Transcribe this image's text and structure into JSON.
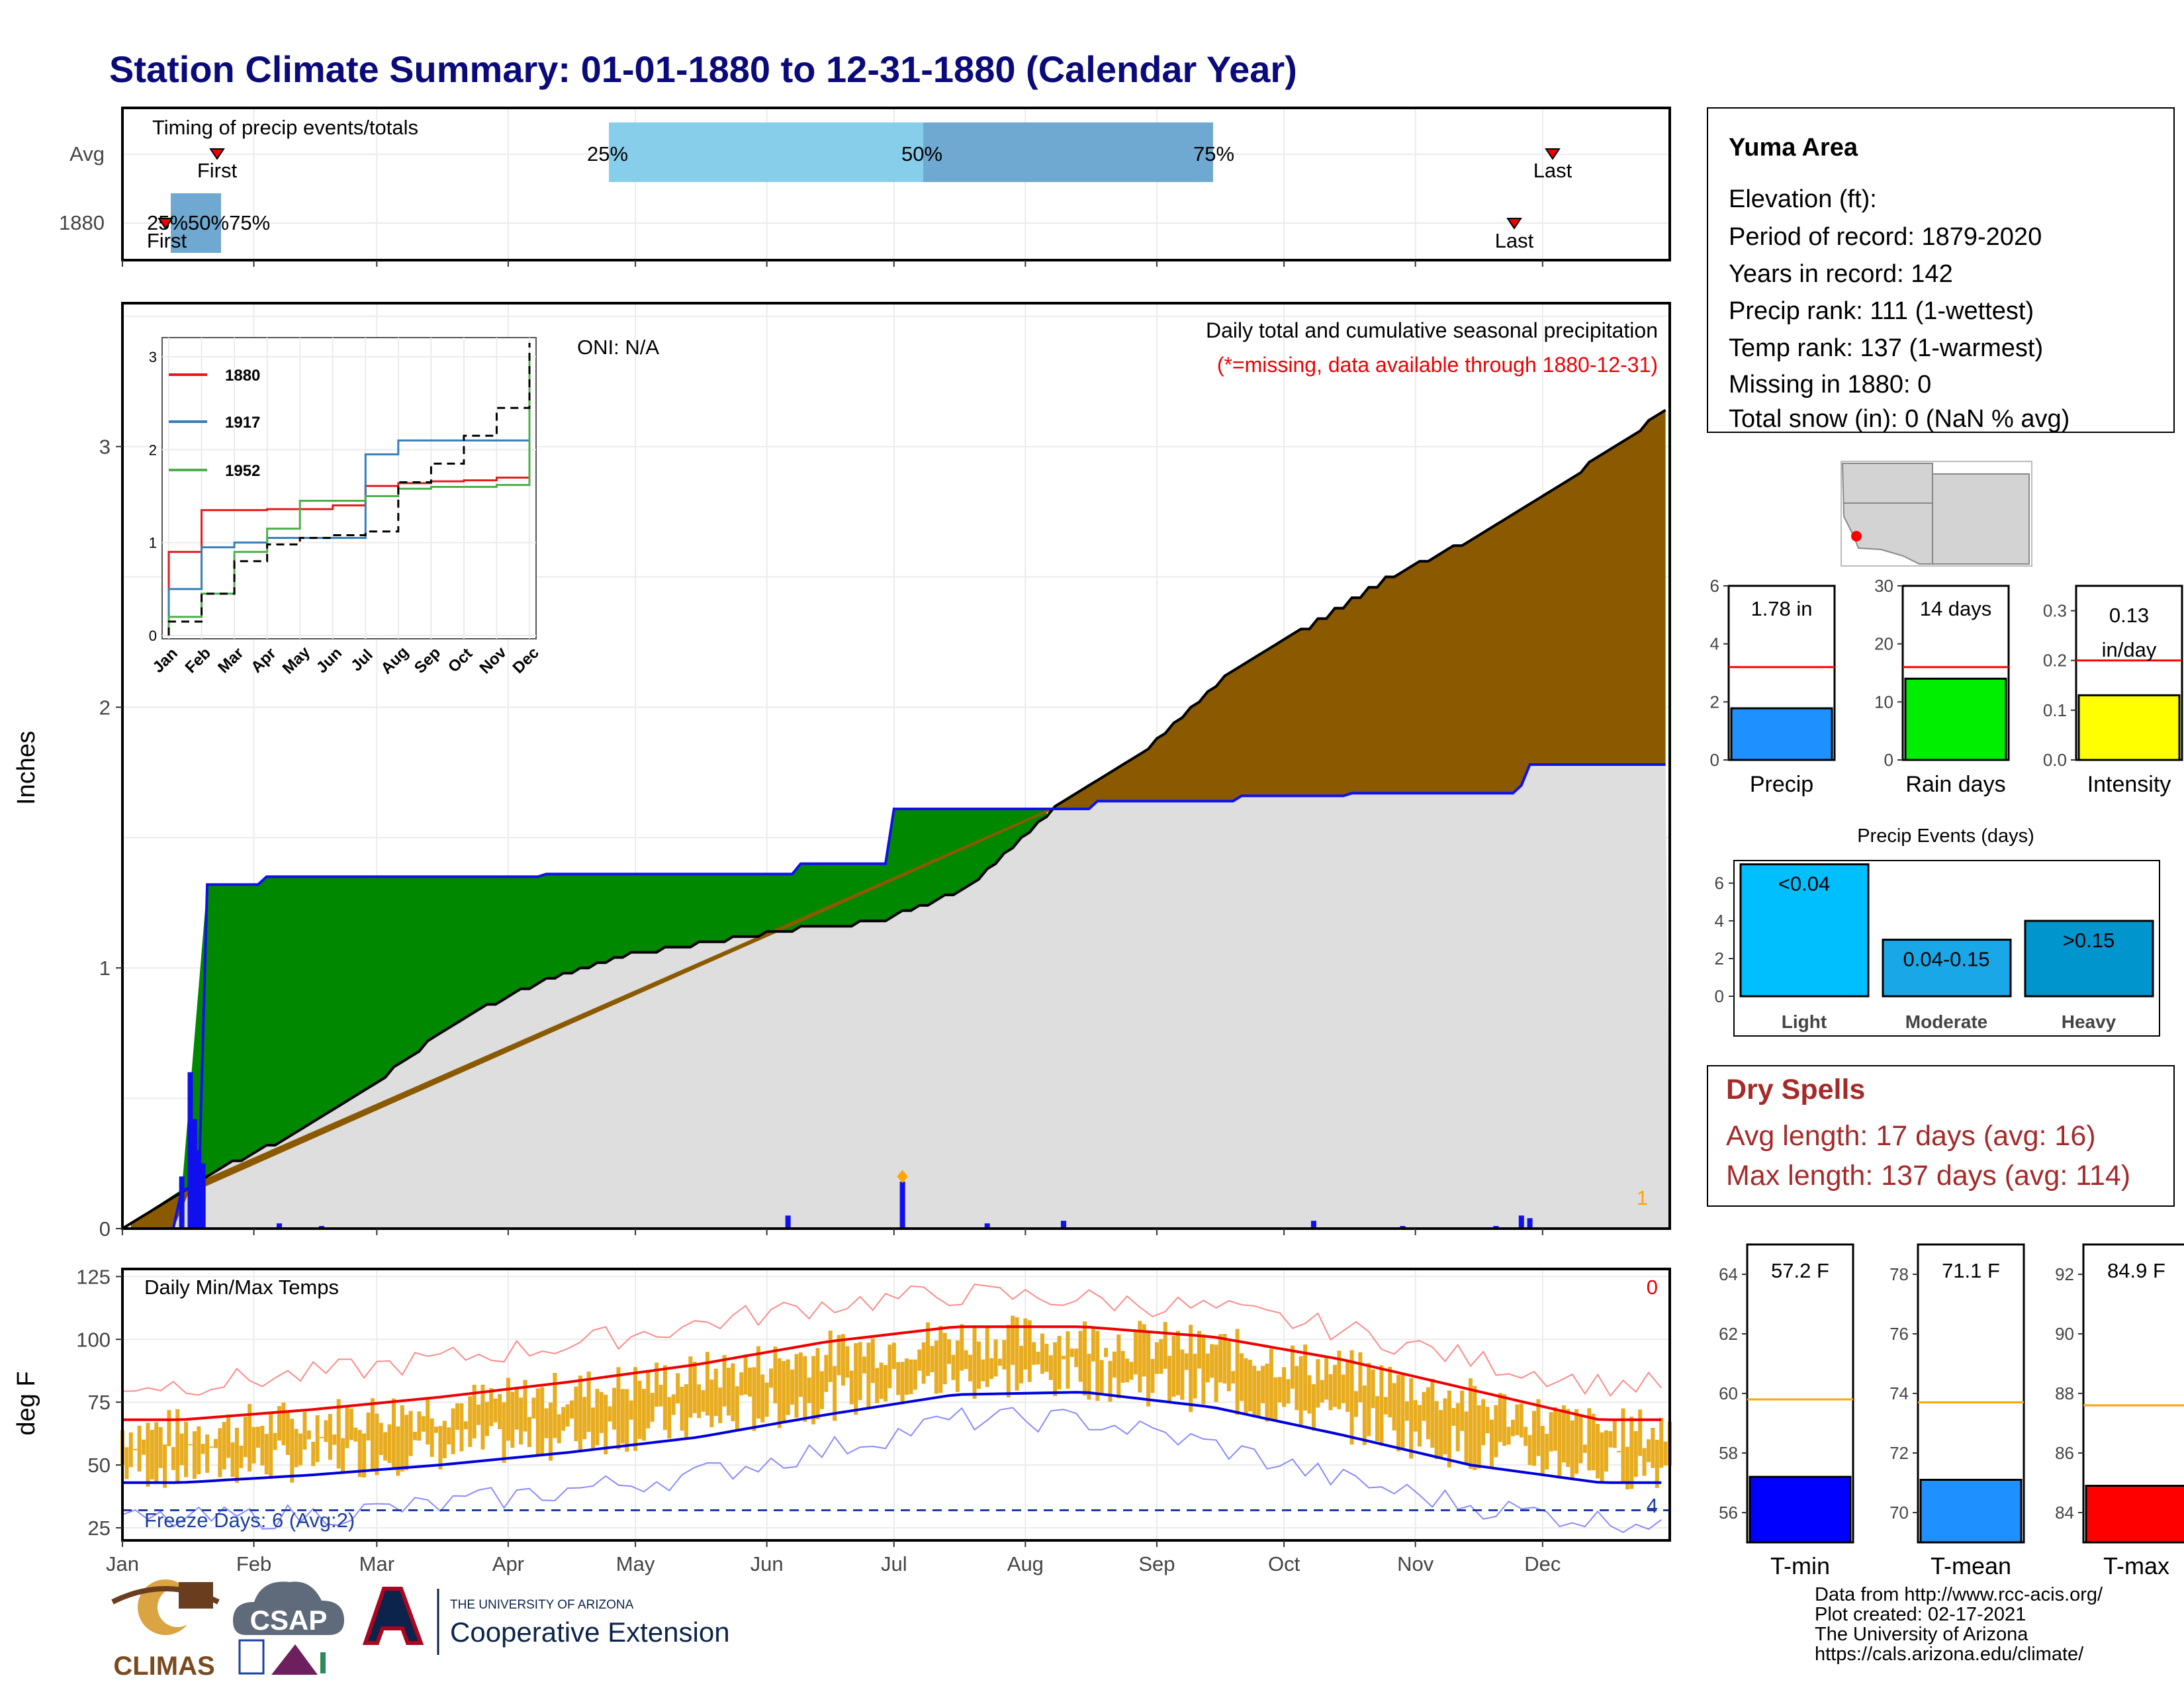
{
  "title": "Station Climate Summary: 01-01-1880 to 12-31-1880 (Calendar Year)",
  "months": [
    "Jan",
    "Feb",
    "Mar",
    "Apr",
    "May",
    "Jun",
    "Jul",
    "Aug",
    "Sep",
    "Oct",
    "Nov",
    "Dec"
  ],
  "timing": {
    "title": "Timing of precip events/totals",
    "rows": [
      "Avg",
      "1880"
    ],
    "avg": {
      "p25_label": "25%",
      "p50_label": "50%",
      "p75_label": "75%",
      "first_label": "First",
      "last_label": "Last",
      "p25": "May 1",
      "p50": "Jul 1",
      "p75": "Sep 1"
    },
    "year": {
      "labels": "25%50%75%",
      "first_label": "First",
      "last_label": "Last"
    }
  },
  "station_box": {
    "name": "Yuma Area",
    "lines": [
      "Elevation (ft):",
      "Period of record: 1879-2020",
      "Years in record: 142",
      "Precip rank: 111 (1-wettest)",
      "Temp rank: 137 (1-warmest)",
      "Missing in 1880: 0",
      "Total snow (in): 0 (NaN % avg)"
    ]
  },
  "precip_chart": {
    "ylabel": "Inches",
    "yticks": [
      "0",
      "1",
      "2",
      "3"
    ],
    "oni": "ONI: N/A",
    "legend_title": "Daily total and cumulative seasonal precipitation",
    "missing_note": "(*=missing, data available through 1880-12-31)",
    "corner_count": "1"
  },
  "inset": {
    "series": [
      "1880",
      "1917",
      "1952"
    ],
    "colors": [
      "#e41a1c",
      "#377eb8",
      "#4daf4a"
    ],
    "yticks": [
      "0",
      "1",
      "2",
      "3"
    ],
    "months": [
      "Jan",
      "Feb",
      "Mar",
      "Apr",
      "May",
      "Jun",
      "Jul",
      "Aug",
      "Sep",
      "Oct",
      "Nov",
      "Dec"
    ]
  },
  "small_bars": {
    "precip": {
      "label": "Precip",
      "value_text": "1.78 in",
      "yticks": [
        "0",
        "2",
        "4",
        "6"
      ],
      "value": 1.78,
      "avg": 3.2,
      "ymax": 6,
      "color": "#1e90ff"
    },
    "rain_days": {
      "label": "Rain days",
      "value_text": "14 days",
      "yticks": [
        "0",
        "10",
        "20",
        "30"
      ],
      "value": 14,
      "avg": 16,
      "ymax": 30,
      "color": "#00ee00"
    },
    "intensity": {
      "label": "Intensity",
      "value_text_1": "0.13",
      "value_text_2": "in/day",
      "yticks": [
        "0.0",
        "0.1",
        "0.2",
        "0.3"
      ],
      "value": 0.13,
      "avg": 0.2,
      "ymax": 0.35,
      "color": "#ffff00"
    }
  },
  "precip_events": {
    "title": "Precip Events (days)",
    "yticks": [
      "0",
      "2",
      "4",
      "6"
    ],
    "categories": [
      "Light",
      "Moderate",
      "Heavy"
    ],
    "bar_labels": [
      "<0.04",
      "0.04-0.15",
      ">0.15"
    ],
    "values": [
      7,
      3,
      4
    ],
    "colors": [
      "#00bfff",
      "#1aa7e8",
      "#0095cc"
    ]
  },
  "dry_spells": {
    "title": "Dry Spells",
    "avg_line": "Avg length: 17 days (avg: 16)",
    "max_line": "Max length: 137 days (avg: 114)"
  },
  "temp_chart": {
    "ylabel": "deg F",
    "title": "Daily Min/Max Temps",
    "yticks": [
      "25",
      "50",
      "75",
      "100",
      "125"
    ],
    "corner_top": "0",
    "corner_bottom": "4",
    "freeze_days": "Freeze Days: 6 (Avg:2)"
  },
  "temp_bars": {
    "tmin": {
      "label": "T-min",
      "value_text": "57.2 F",
      "yticks": [
        "56",
        "58",
        "60",
        "62",
        "64"
      ],
      "value": 57.2,
      "avg": 59.8,
      "ymin": 55,
      "ymax": 65,
      "color": "#0000ff"
    },
    "tmean": {
      "label": "T-mean",
      "value_text": "71.1 F",
      "yticks": [
        "70",
        "72",
        "74",
        "76",
        "78"
      ],
      "value": 71.1,
      "avg": 73.7,
      "ymin": 69,
      "ymax": 79,
      "color": "#1e90ff"
    },
    "tmax": {
      "label": "T-max",
      "value_text": "84.9 F",
      "yticks": [
        "84",
        "86",
        "88",
        "90",
        "92"
      ],
      "value": 84.9,
      "avg": 87.6,
      "ymin": 83,
      "ymax": 93,
      "color": "#ff0000"
    }
  },
  "footer": {
    "lines": [
      "Data from http://www.rcc-acis.org/",
      "Plot created: 02-17-2021",
      "The University of Arizona",
      "https://cals.arizona.edu/climate/"
    ],
    "logo_climas": "CLIMAS",
    "logo_csap": "CSAP",
    "ua_line1": "THE UNIVERSITY OF ARIZONA",
    "ua_line2": "Cooperative Extension"
  },
  "chart_data": [
    {
      "type": "area",
      "title": "Daily total and cumulative seasonal precipitation",
      "ylabel": "Inches",
      "ylim": [
        0,
        3.5
      ],
      "x_range": [
        "Jan",
        "Dec"
      ],
      "series": [
        {
          "name": "",
          "description_points": [
            [
              1,
              0
            ],
            [
              15,
              0.15
            ],
            [
              20,
              1.32
            ],
            [
              35,
              1.35
            ],
            [
              100,
              1.36
            ],
            [
              155,
              1.36
            ],
            [
              160,
              1.4
            ],
            [
              180,
              1.4
            ],
            [
              182,
              1.61
            ],
            [
              220,
              1.61
            ],
            [
              230,
              1.64
            ],
            [
              260,
              1.64
            ],
            [
              265,
              1.66
            ],
            [
              290,
              1.67
            ],
            [
              305,
              1.67
            ],
            [
              330,
              1.7
            ],
            [
              332,
              1.78
            ],
            [
              366,
              1.78
            ]
          ]
        },
        {
          "name": "",
          "description_points": [
            [
              1,
              0
            ],
            [
              20,
              0.2
            ],
            [
              40,
              0.35
            ],
            [
              60,
              0.55
            ],
            [
              80,
              0.8
            ],
            [
              100,
              0.95
            ],
            [
              120,
              1.05
            ],
            [
              140,
              1.1
            ],
            [
              160,
              1.15
            ],
            [
              180,
              1.18
            ],
            [
              200,
              1.3
            ],
            [
              220,
              1.6
            ],
            [
              240,
              1.8
            ],
            [
              260,
              2.1
            ],
            [
              280,
              2.3
            ],
            [
              300,
              2.5
            ],
            [
              320,
              2.65
            ],
            [
              340,
              2.85
            ],
            [
              366,
              3.15
            ]
          ]
        }
      ],
      "daily_bars": [
        [
          15,
          0.2
        ],
        [
          17,
          0.6
        ],
        [
          18,
          0.42
        ],
        [
          19,
          0.3
        ],
        [
          20,
          0.25
        ],
        [
          38,
          0.02
        ],
        [
          48,
          0.01
        ],
        [
          158,
          0.05
        ],
        [
          185,
          0.18
        ],
        [
          205,
          0.02
        ],
        [
          223,
          0.03
        ],
        [
          282,
          0.03
        ],
        [
          303,
          0.01
        ],
        [
          325,
          0.01
        ],
        [
          331,
          0.05
        ],
        [
          333,
          0.04
        ]
      ]
    },
    {
      "type": "line",
      "title": "",
      "x": [
        "Jan",
        "Feb",
        "Mar",
        "Apr",
        "May",
        "Jun",
        "Jul",
        "Aug",
        "Sep",
        "Oct",
        "Nov",
        "Dec"
      ],
      "ylim": [
        0,
        3.1
      ],
      "series": [
        {
          "name": "1880",
          "values": [
            0.9,
            1.35,
            1.35,
            1.36,
            1.36,
            1.4,
            1.61,
            1.64,
            1.66,
            1.67,
            1.7,
            1.78
          ]
        },
        {
          "name": "1917",
          "values": [
            0.5,
            0.95,
            1.0,
            1.05,
            1.05,
            1.05,
            1.95,
            2.1,
            2.1,
            2.1,
            2.1,
            2.1
          ]
        },
        {
          "name": "1952",
          "values": [
            0.2,
            0.45,
            0.9,
            1.15,
            1.45,
            1.45,
            1.5,
            1.58,
            1.6,
            1.6,
            1.62,
            3.0
          ]
        },
        {
          "name": "",
          "values": [
            0.15,
            0.45,
            0.8,
            0.98,
            1.05,
            1.08,
            1.12,
            1.65,
            1.85,
            2.15,
            2.45,
            3.15
          ]
        }
      ]
    },
    {
      "type": "line",
      "title": "Daily Min/Max Temps",
      "ylabel": "deg F",
      "ylim": [
        20,
        128
      ],
      "x": [
        "Jan",
        "Feb",
        "Mar",
        "Apr",
        "May",
        "Jun",
        "Jul",
        "Aug",
        "Sep",
        "Oct",
        "Nov",
        "Dec"
      ],
      "series": [
        {
          "name": "",
          "values": [
            68,
            72,
            77,
            83,
            90,
            99,
            105,
            105,
            101,
            92,
            80,
            68
          ]
        },
        {
          "name": "",
          "values": [
            43,
            46,
            50,
            55,
            61,
            70,
            78,
            79,
            73,
            62,
            50,
            43
          ]
        },
        {
          "name": "",
          "values": [
            82,
            86,
            92,
            98,
            106,
            114,
            118,
            116,
            112,
            104,
            92,
            82
          ]
        },
        {
          "name": "",
          "values": [
            28,
            30,
            34,
            40,
            46,
            56,
            68,
            68,
            58,
            44,
            34,
            28
          ]
        }
      ],
      "freeze_line": 32
    }
  ]
}
